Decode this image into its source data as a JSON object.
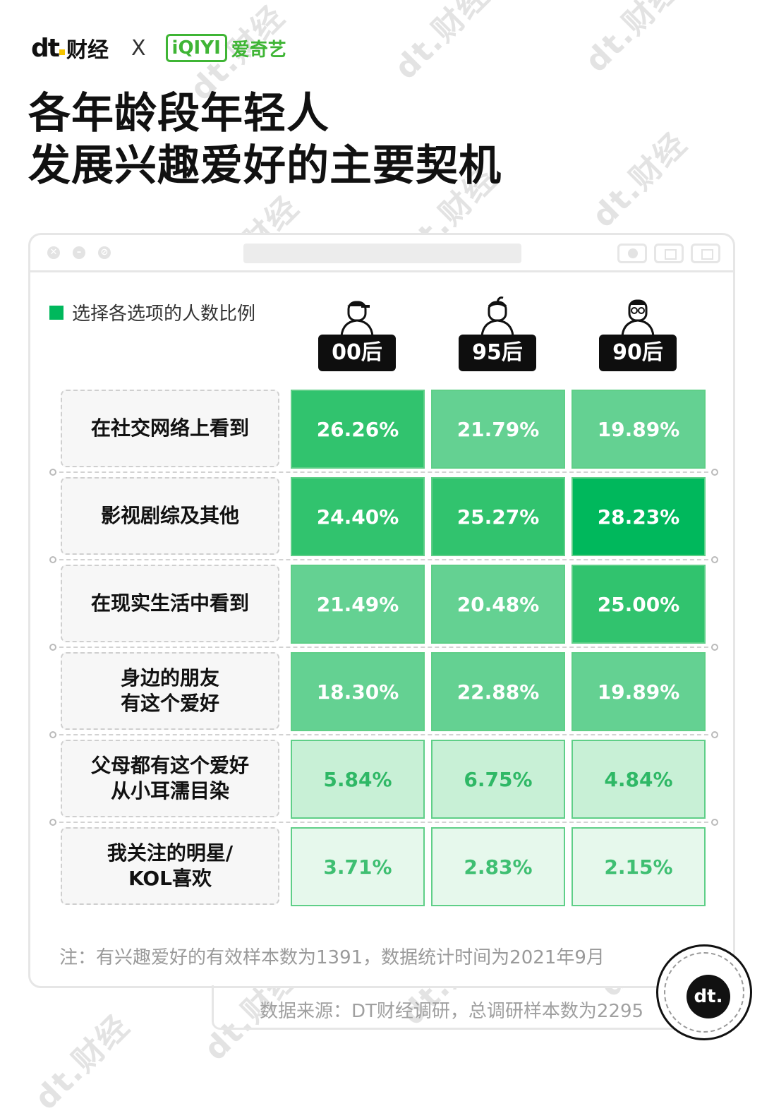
{
  "header": {
    "brand_left": "财经",
    "brand_left_mark": "dt",
    "cross": "X",
    "brand_right_box": "iQIYI",
    "brand_right_text": "爱奇艺",
    "title_line1": "各年龄段年轻人",
    "title_line2": "发展兴趣爱好的主要契机"
  },
  "watermark_text": "dt.财经",
  "chart_data": {
    "type": "table",
    "title": "各年龄段年轻人发展兴趣爱好的主要契机",
    "legend": "选择各选项的人数比例",
    "columns": [
      "00后",
      "95后",
      "90后"
    ],
    "rows": [
      {
        "label": "在社交网络上看到",
        "values": [
          "26.26%",
          "21.79%",
          "19.89%"
        ],
        "pct": [
          26.26,
          21.79,
          19.89
        ]
      },
      {
        "label": "影视剧综及其他",
        "values": [
          "24.40%",
          "25.27%",
          "28.23%"
        ],
        "pct": [
          24.4,
          25.27,
          28.23
        ]
      },
      {
        "label": "在现实生活中看到",
        "values": [
          "21.49%",
          "20.48%",
          "25.00%"
        ],
        "pct": [
          21.49,
          20.48,
          25.0
        ]
      },
      {
        "label": "身边的朋友\n有这个爱好",
        "values": [
          "18.30%",
          "22.88%",
          "19.89%"
        ],
        "pct": [
          18.3,
          22.88,
          19.89
        ]
      },
      {
        "label": "父母都有这个爱好\n从小耳濡目染",
        "values": [
          "5.84%",
          "6.75%",
          "4.84%"
        ],
        "pct": [
          5.84,
          6.75,
          4.84
        ]
      },
      {
        "label": "我关注的明星/\nKOL喜欢",
        "values": [
          "3.71%",
          "2.83%",
          "2.15%"
        ],
        "pct": [
          3.71,
          2.83,
          2.15
        ]
      }
    ],
    "colors": {
      "max": "#00b85c",
      "high": "#31c36e",
      "mid": "#64d192",
      "low": "#c8f0d6",
      "min": "#e6f8ec"
    }
  },
  "note": "注：有兴趣爱好的有效样本数为1391，数据统计时间为2021年9月",
  "source": "数据来源：DT财经调研，总调研样本数为2295",
  "badge": "dt."
}
